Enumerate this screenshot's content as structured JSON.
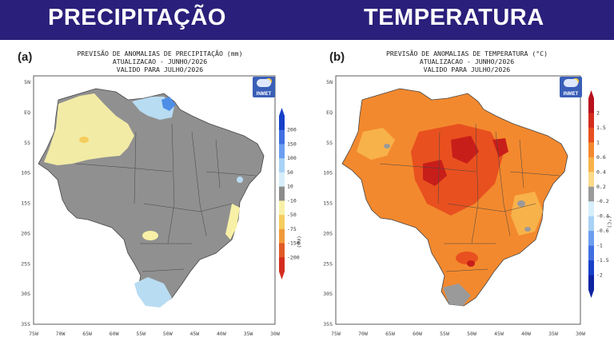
{
  "header": {
    "left_title": "PRECIPITAÇÃO",
    "right_title": "TEMPERATURA",
    "background_color": "#2a1f7a"
  },
  "panels": [
    {
      "letter": "(a)",
      "title_lines": [
        "PREVISÃO DE ANOMALIAS DE PRECIPITAÇÃO (mm)",
        "ATUALIZACAO - JUNHO/2026",
        "VALIDO PARA JULHO/2026"
      ],
      "logo_text": "INMET",
      "colorbar_unit": "(mm)",
      "colorbar_ticks": [
        "200",
        "150",
        "100",
        "50",
        "10",
        "-10",
        "-50",
        "-75",
        "-150",
        "-200"
      ],
      "colorbar_colors": [
        "#1740c8",
        "#3f6fe0",
        "#6b9ef0",
        "#a8d2f5",
        "#d7eefb",
        "#8c8c8c",
        "#f8f0a6",
        "#f5cd5e",
        "#f19a3a",
        "#e05a26",
        "#d42d1e"
      ]
    },
    {
      "letter": "(b)",
      "title_lines": [
        "PREVISÃO DE ANOMALIAS DE TEMPERATURA (°C)",
        "ATUALIZACAO - JUNHO/2026",
        "VALIDO PARA JULHO/2026"
      ],
      "logo_text": "INMET",
      "colorbar_unit": "(°C)",
      "colorbar_ticks": [
        "2",
        "1.5",
        "1",
        "0.6",
        "0.4",
        "0.2",
        "-0.2",
        "-0.4",
        "-0.6",
        "-1",
        "-1.5",
        "-2"
      ],
      "colorbar_colors": [
        "#b8101c",
        "#d42d1e",
        "#e8501f",
        "#f3892e",
        "#f8b24a",
        "#fbd98a",
        "#9a9a9a",
        "#d7eefb",
        "#a8d2f5",
        "#6b9ef0",
        "#3f6fe0",
        "#1740c8",
        "#0d23a0"
      ]
    }
  ],
  "axes": {
    "x_labels": [
      "75W",
      "70W",
      "65W",
      "60W",
      "55W",
      "50W",
      "45W",
      "40W",
      "35W",
      "30W"
    ],
    "y_labels": [
      "5N",
      "EQ",
      "5S",
      "10S",
      "15S",
      "20S",
      "25S",
      "30S",
      "35S"
    ]
  }
}
